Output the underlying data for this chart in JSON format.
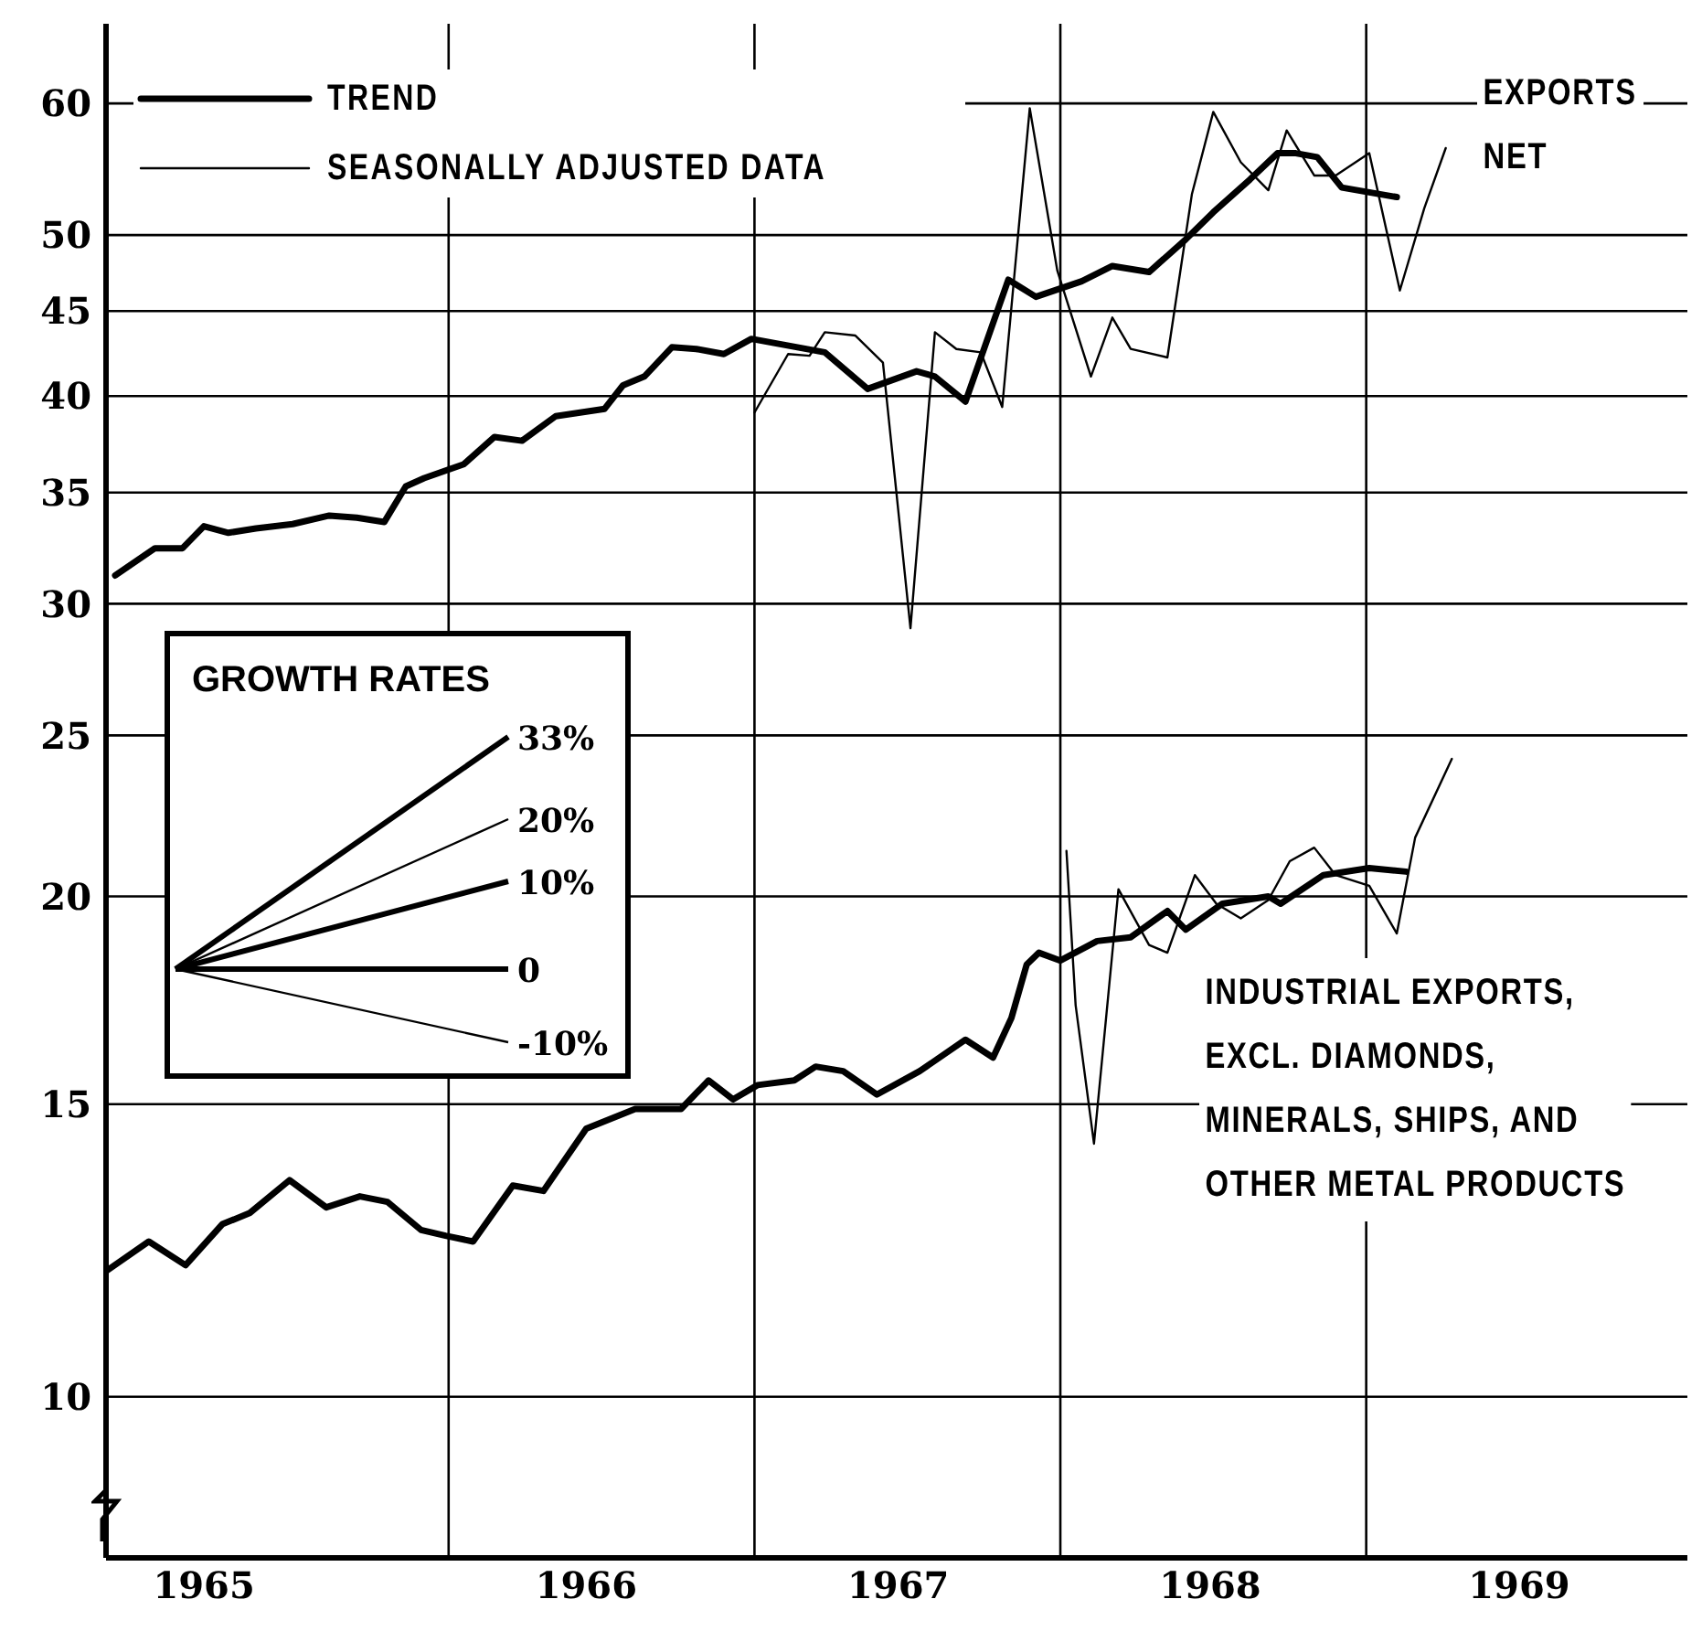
{
  "chart_data": {
    "type": "line",
    "log": "y",
    "grid": true,
    "legend": "top left",
    "marker": "none",
    "line_style": "solid",
    "xlim": [
      1964.88,
      1970.05
    ],
    "xticks": [
      {
        "value": 1965.2,
        "label": "1965"
      },
      {
        "value": 1966,
        "label": null
      },
      {
        "value": 1966.45,
        "label": "1966"
      },
      {
        "value": 1967,
        "label": null
      },
      {
        "value": 1967.47,
        "label": "1967"
      },
      {
        "value": 1968,
        "label": null
      },
      {
        "value": 1968.49,
        "label": "1968"
      },
      {
        "value": 1969,
        "label": null
      },
      {
        "value": 1969.5,
        "label": "1969"
      }
    ],
    "ylim": [
      8,
      67
    ],
    "yticks": [
      10,
      15,
      20,
      25,
      30,
      35,
      40,
      45,
      50,
      60
    ],
    "annotations": [
      "EXPORTS\nNET",
      "INDUSTRIAL EXPORTS,\nEXCL. DIAMONDS,\nMINERALS, SHIPS, AND\nOTHER METAL PRODUCTS",
      "GROWTH RATES",
      "33%",
      "20%",
      "10%",
      "0",
      "-10%"
    ],
    "series": [
      {
        "name": "TREND",
        "color": "#000000",
        "x": [
          1964.91,
          1965.04,
          1965.13,
          1965.2,
          1965.28,
          1965.37,
          1965.49,
          1965.61,
          1965.7,
          1965.79,
          1965.86,
          1965.92,
          1966.05,
          1966.15,
          1966.24,
          1966.35,
          1966.51,
          1966.57,
          1966.64,
          1966.73,
          1966.81,
          1966.9,
          1966.99,
          1967.23,
          1967.37,
          1967.53,
          1967.59,
          1967.69,
          1967.83,
          1967.92,
          1968.07,
          1968.17,
          1968.29,
          1968.41,
          1968.5,
          1968.62,
          1968.71,
          1968.77,
          1968.84,
          1968.92,
          1969.1
        ],
        "values": [
          31.2,
          32.4,
          32.4,
          33.4,
          33.1,
          33.3,
          33.5,
          33.9,
          33.8,
          33.6,
          35.3,
          35.7,
          36.4,
          37.8,
          37.6,
          38.9,
          39.3,
          40.6,
          41.1,
          42.8,
          42.7,
          42.4,
          43.3,
          42.5,
          40.4,
          41.4,
          41.1,
          39.7,
          47.0,
          45.9,
          46.9,
          47.9,
          47.5,
          49.7,
          51.6,
          54.0,
          56.0,
          56.0,
          55.7,
          53.4,
          52.7
        ]
      },
      {
        "name": "SEASONALLY ADJUSTED DATA",
        "color": "#000000",
        "x": [
          1967.0,
          1967.11,
          1967.18,
          1967.23,
          1967.33,
          1967.42,
          1967.51,
          1967.59,
          1967.66,
          1967.74,
          1967.81,
          1967.9,
          1967.99,
          1968.1,
          1968.17,
          1968.23,
          1968.35,
          1968.43,
          1968.5,
          1968.59,
          1968.68,
          1968.74,
          1968.83,
          1968.9,
          1969.01,
          1969.11,
          1969.19,
          1969.26
        ],
        "values": [
          39.1,
          42.4,
          42.3,
          43.7,
          43.5,
          41.9,
          29.0,
          43.7,
          42.7,
          42.5,
          39.4,
          59.6,
          47.6,
          41.1,
          44.6,
          42.7,
          42.2,
          52.9,
          59.3,
          55.3,
          53.2,
          57.8,
          54.3,
          54.3,
          56.0,
          46.3,
          51.9,
          56.4
        ]
      },
      {
        "color": "#000000",
        "x": [
          1964.88,
          1965.02,
          1965.14,
          1965.26,
          1965.35,
          1965.48,
          1965.6,
          1965.71,
          1965.8,
          1965.91,
          1965.99,
          1966.08,
          1966.21,
          1966.31,
          1966.45,
          1966.61,
          1966.76,
          1966.85,
          1966.93,
          1967.01,
          1967.13,
          1967.2,
          1967.29,
          1967.4,
          1967.54,
          1967.69,
          1967.78,
          1967.84,
          1967.89,
          1967.93,
          1968.0,
          1968.12,
          1968.23,
          1968.35,
          1968.41,
          1968.53,
          1968.68,
          1968.72,
          1968.86,
          1969.01,
          1969.13
        ],
        "values": [
          11.9,
          12.4,
          12.0,
          12.7,
          12.9,
          13.5,
          13.0,
          13.2,
          13.1,
          12.6,
          12.5,
          12.4,
          13.4,
          13.3,
          14.5,
          14.9,
          14.9,
          15.5,
          15.1,
          15.4,
          15.5,
          15.8,
          15.7,
          15.2,
          15.7,
          16.4,
          16.0,
          16.9,
          18.2,
          18.5,
          18.3,
          18.8,
          18.9,
          19.6,
          19.1,
          19.8,
          20.0,
          19.8,
          20.6,
          20.8,
          20.7
        ]
      },
      {
        "color": "#000000",
        "x": [
          1968.02,
          1968.05,
          1968.11,
          1968.19,
          1968.29,
          1968.35,
          1968.44,
          1968.51,
          1968.59,
          1968.68,
          1968.75,
          1968.83,
          1968.9,
          1969.01,
          1969.1,
          1969.16,
          1969.28
        ],
        "values": [
          21.3,
          17.2,
          14.2,
          20.2,
          18.7,
          18.5,
          20.6,
          19.8,
          19.4,
          19.9,
          21.0,
          21.4,
          20.6,
          20.3,
          19.0,
          21.7,
          24.2
        ]
      }
    ]
  }
}
